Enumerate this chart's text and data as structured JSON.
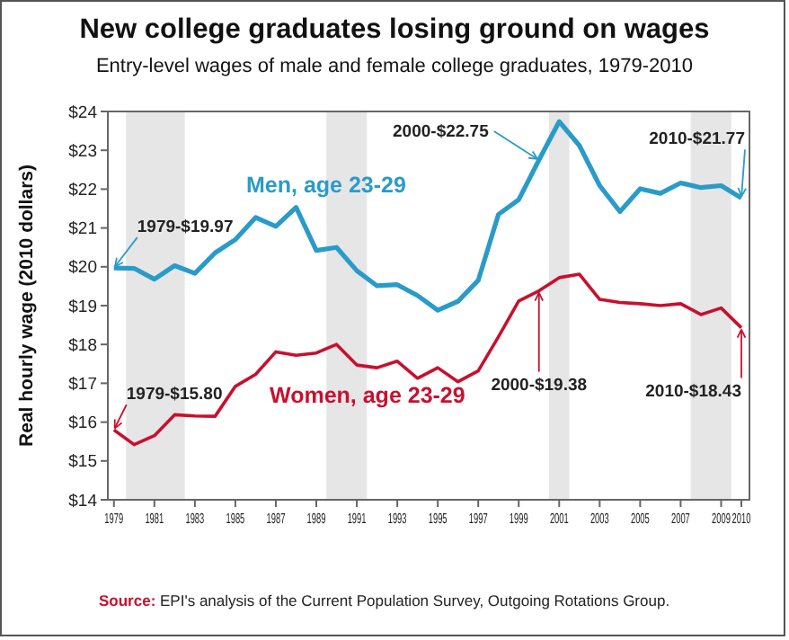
{
  "chart_data": {
    "type": "line",
    "title": "New college graduates losing ground on wages",
    "subtitle": "Entry-level wages of male and female college graduates, 1979-2010",
    "ylabel": "Real hourly wage (2010 dollars)",
    "x": [
      1979,
      1980,
      1981,
      1982,
      1983,
      1984,
      1985,
      1986,
      1987,
      1988,
      1989,
      1990,
      1991,
      1992,
      1993,
      1994,
      1995,
      1996,
      1997,
      1998,
      1999,
      2000,
      2001,
      2002,
      2003,
      2004,
      2005,
      2006,
      2007,
      2008,
      2009,
      2010
    ],
    "series": [
      {
        "name": "Men, age 23-29",
        "color": "#2a9bc9",
        "values": [
          19.97,
          19.96,
          19.68,
          20.03,
          19.83,
          20.36,
          20.7,
          21.27,
          21.04,
          21.53,
          20.42,
          20.5,
          19.9,
          19.51,
          19.54,
          19.26,
          18.88,
          19.11,
          19.65,
          21.35,
          21.73,
          22.75,
          23.74,
          23.12,
          22.09,
          21.42,
          22.01,
          21.89,
          22.16,
          22.04,
          22.09,
          21.77
        ]
      },
      {
        "name": "Women, age 23-29",
        "color": "#c8102e",
        "values": [
          15.8,
          15.42,
          15.65,
          16.19,
          16.16,
          16.15,
          16.92,
          17.23,
          17.81,
          17.72,
          17.78,
          18.0,
          17.47,
          17.4,
          17.57,
          17.13,
          17.4,
          17.04,
          17.32,
          18.2,
          19.12,
          19.38,
          19.72,
          19.81,
          19.16,
          19.08,
          19.05,
          19.0,
          19.05,
          18.77,
          18.94,
          18.43
        ]
      }
    ],
    "xlim": [
      1978.7,
      2010.4
    ],
    "xticks": [
      1979,
      1981,
      1983,
      1985,
      1987,
      1989,
      1991,
      1993,
      1995,
      1997,
      1999,
      2001,
      2003,
      2005,
      2007,
      2009,
      2010
    ],
    "ylim": [
      14,
      24
    ],
    "yticks": [
      {
        "value": 14,
        "label": "$14"
      },
      {
        "value": 15,
        "label": "$15"
      },
      {
        "value": 16,
        "label": "$16"
      },
      {
        "value": 17,
        "label": "$17"
      },
      {
        "value": 18,
        "label": "$18"
      },
      {
        "value": 19,
        "label": "$19"
      },
      {
        "value": 20,
        "label": "$20"
      },
      {
        "value": 21,
        "label": "$21"
      },
      {
        "value": 22,
        "label": "$22"
      },
      {
        "value": 23,
        "label": "$23"
      },
      {
        "value": 24,
        "label": "$24"
      }
    ],
    "bands": [
      {
        "axis": "x",
        "from": 1979.6,
        "to": 1982.5,
        "color": "#e6e6e7"
      },
      {
        "axis": "x",
        "from": 1989.5,
        "to": 1991.5,
        "color": "#e6e6e7"
      },
      {
        "axis": "x",
        "from": 2000.5,
        "to": 2001.5,
        "color": "#e6e6e7"
      },
      {
        "axis": "x",
        "from": 2007.5,
        "to": 2009.5,
        "color": "#e6e6e7"
      }
    ],
    "annotations": [
      {
        "text": "1979-$19.97",
        "x": 1979,
        "y": 19.97
      },
      {
        "text": "2000-$22.75",
        "x": 2000,
        "y": 22.75
      },
      {
        "text": "2010-$21.77",
        "x": 2010,
        "y": 21.77
      },
      {
        "text": "1979-$15.80",
        "x": 1979,
        "y": 15.8
      },
      {
        "text": "2000-$19.38",
        "x": 2000,
        "y": 19.38
      },
      {
        "text": "2010-$18.43",
        "x": 2010,
        "y": 18.43
      },
      "Source: EPI's analysis of the Current Population Survey, Outgoing Rotations Group."
    ],
    "grid": false,
    "marker": "none",
    "line_style": "solid"
  }
}
